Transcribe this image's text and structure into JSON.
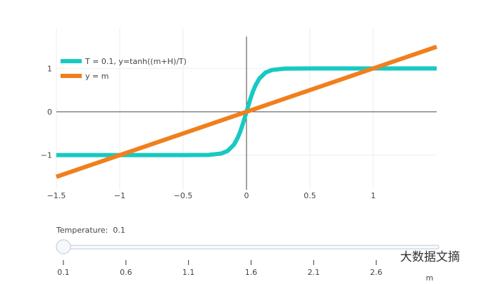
{
  "chart_data": {
    "type": "line",
    "title": "",
    "xlabel": "",
    "ylabel": "",
    "xlim": [
      -1.5,
      1.5
    ],
    "ylim": [
      -1.8,
      1.93
    ],
    "xticks": [
      -1.5,
      -1,
      -0.5,
      0,
      0.5,
      1
    ],
    "xtick_labels": [
      "−1.5",
      "−1",
      "−0.5",
      "0",
      "0.5",
      "1"
    ],
    "yticks": [
      -1,
      0,
      1
    ],
    "ytick_labels": [
      "−1",
      "0",
      "1"
    ],
    "grid": true,
    "legend_position": "top-left",
    "series": [
      {
        "name": "T = 0.1, y=tanh((m+H)/T)",
        "color": "#17c9c3",
        "x": [
          -1.5,
          -1.0,
          -0.5,
          -0.3,
          -0.2,
          -0.15,
          -0.1,
          -0.07,
          -0.05,
          -0.03,
          0,
          0.03,
          0.05,
          0.07,
          0.1,
          0.15,
          0.2,
          0.3,
          0.5,
          1.0,
          1.5
        ],
        "y": [
          -1.0,
          -1.0,
          -1.0,
          -0.995,
          -0.964,
          -0.905,
          -0.762,
          -0.604,
          -0.462,
          -0.291,
          0,
          0.291,
          0.462,
          0.604,
          0.762,
          0.905,
          0.964,
          0.995,
          1.0,
          1.0,
          1.0
        ]
      },
      {
        "name": "y = m",
        "color": "#f07f1d",
        "x": [
          -1.5,
          1.5
        ],
        "y": [
          -1.5,
          1.5
        ]
      }
    ]
  },
  "slider": {
    "label": "Temperature:",
    "current_value": "0.1",
    "value": 0.1,
    "range": [
      0.1,
      3.1
    ],
    "ticks": [
      "0.1",
      "0.6",
      "1.1",
      "1.6",
      "2.1",
      "2.6"
    ],
    "axis_label": "m"
  },
  "watermark": "大数据文摘"
}
